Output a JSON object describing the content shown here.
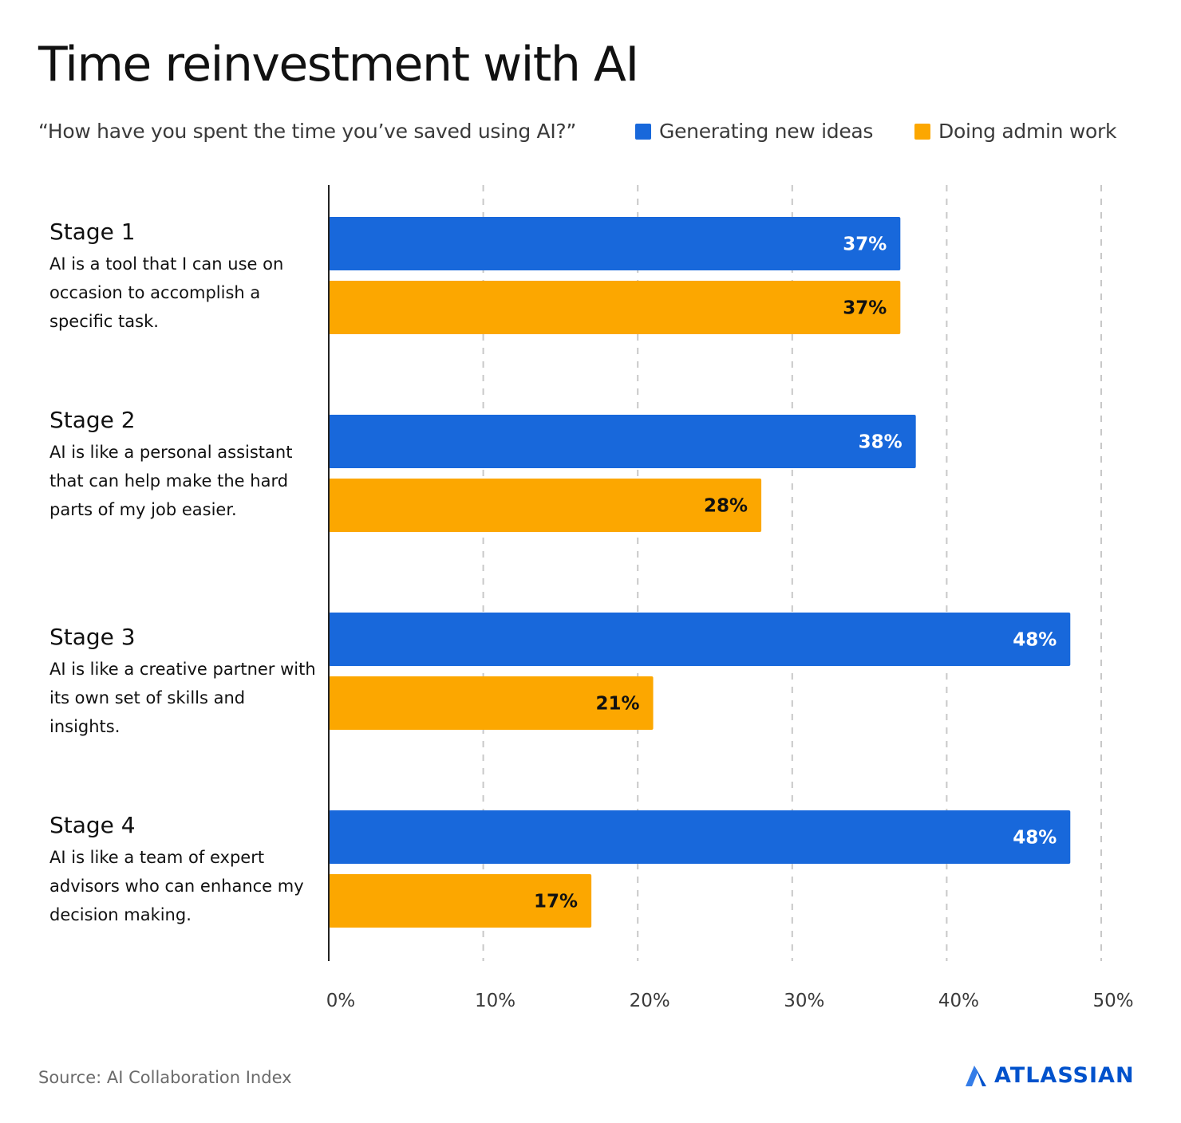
{
  "title": "Time reinvestment with AI",
  "subtitle": "“How have you spent the time you’ve saved using AI?”",
  "source": "Source: AI Collaboration Index",
  "brand": "ATLASSIAN",
  "colors": {
    "blue": "#1868db",
    "orange": "#fca700",
    "axis": "#222222",
    "grid": "#c8c8c8"
  },
  "stages": [
    {
      "title": "Stage 1",
      "description": "AI is a tool that I can use on occasion to accomplish a specific task."
    },
    {
      "title": "Stage 2",
      "description": "AI is like a personal assistant that can help make the hard parts of my job easier."
    },
    {
      "title": "Stage 3",
      "description": "AI is like a creative partner with its own set of skills and insights."
    },
    {
      "title": "Stage 4",
      "description": "AI is like a team of expert advisors who can enhance my decision making."
    }
  ],
  "chart_data": {
    "type": "bar",
    "orientation": "horizontal",
    "title": "Time reinvestment with AI",
    "subtitle": "“How have you spent the time you’ve saved using AI?”",
    "categories": [
      "Stage 1",
      "Stage 2",
      "Stage 3",
      "Stage 4"
    ],
    "series": [
      {
        "name": "Generating new ideas",
        "color": "#1868db",
        "values": [
          37,
          38,
          48,
          48
        ],
        "labels": [
          "37%",
          "38%",
          "48%",
          "48%"
        ]
      },
      {
        "name": "Doing admin work",
        "color": "#fca700",
        "values": [
          37,
          28,
          21,
          17
        ],
        "labels": [
          "37%",
          "28%",
          "21%",
          "17%"
        ]
      }
    ],
    "xlim": [
      0,
      50
    ],
    "xticks": [
      0,
      10,
      20,
      30,
      40,
      50
    ],
    "xtick_labels": [
      "0%",
      "10%",
      "20%",
      "30%",
      "40%",
      "50%"
    ],
    "xlabel": "",
    "ylabel": "",
    "grid": true,
    "legend": "top-right"
  }
}
